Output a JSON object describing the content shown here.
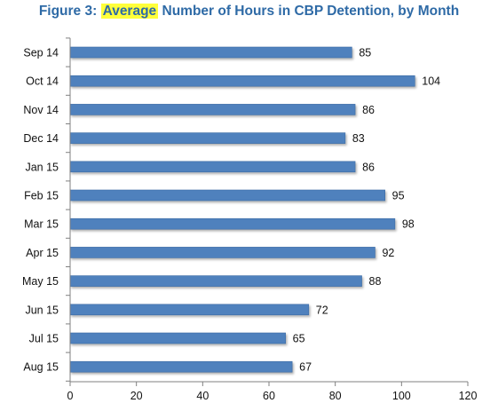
{
  "title": {
    "prefix": "Figure 3: ",
    "highlight": "Average",
    "suffix": " Number of Hours in CBP Detention, by Month"
  },
  "colors": {
    "bar": "#4f81bd",
    "bar_edge": "#3a6aa3",
    "title": "#2e6aa6",
    "highlight": "#ffff3a"
  },
  "chart_data": {
    "type": "bar",
    "orientation": "horizontal",
    "title": "Figure 3: Average Number of Hours in CBP Detention, by Month",
    "xlabel": "",
    "ylabel": "",
    "categories": [
      "Sep 14",
      "Oct 14",
      "Nov 14",
      "Dec 14",
      "Jan 15",
      "Feb 15",
      "Mar 15",
      "Apr 15",
      "May 15",
      "Jun 15",
      "Jul 15",
      "Aug 15"
    ],
    "values": [
      85,
      104,
      86,
      83,
      86,
      95,
      98,
      92,
      88,
      72,
      65,
      67
    ],
    "xlim": [
      0,
      120
    ],
    "xticks": [
      0,
      20,
      40,
      60,
      80,
      100,
      120
    ],
    "grid": false,
    "legend": "none",
    "data_labels": true
  }
}
